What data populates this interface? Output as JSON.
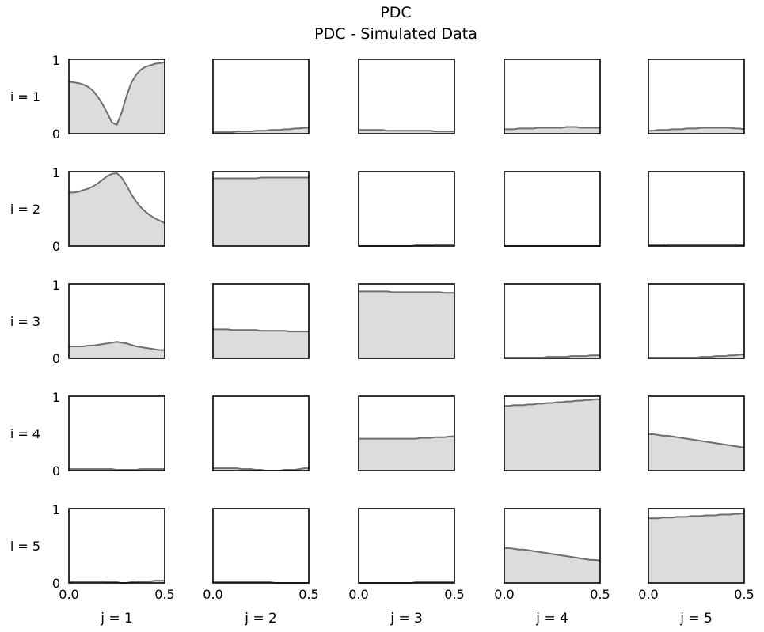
{
  "chart_data": {
    "type": "area",
    "title": "PDC",
    "subtitle": "PDC - Simulated Data",
    "row_labels": [
      "i =  1",
      "i =  2",
      "i =  3",
      "i =  4",
      "i =  5"
    ],
    "col_labels": [
      "j =  1",
      "j =  2",
      "j =  3",
      "j =  4",
      "j =  5"
    ],
    "xlim": [
      0.0,
      0.5
    ],
    "ylim": [
      0,
      1
    ],
    "x_tick_labels": [
      "0.0",
      "0.5"
    ],
    "y_tick_labels": [
      "0",
      "1"
    ],
    "x": [
      0.0,
      0.025,
      0.05,
      0.075,
      0.1,
      0.125,
      0.15,
      0.175,
      0.2,
      0.225,
      0.25,
      0.275,
      0.3,
      0.325,
      0.35,
      0.375,
      0.4,
      0.425,
      0.45,
      0.475,
      0.5
    ],
    "grid": false,
    "fill_color": "#dcdcdc",
    "line_color": "#6e6e6e",
    "panels": [
      [
        {
          "i": 1,
          "j": 1,
          "values": [
            0.7,
            0.69,
            0.68,
            0.66,
            0.63,
            0.58,
            0.5,
            0.4,
            0.28,
            0.15,
            0.12,
            0.28,
            0.5,
            0.68,
            0.79,
            0.86,
            0.9,
            0.92,
            0.94,
            0.95,
            0.96
          ]
        },
        {
          "i": 1,
          "j": 2,
          "values": [
            0.02,
            0.02,
            0.02,
            0.02,
            0.02,
            0.03,
            0.03,
            0.03,
            0.03,
            0.04,
            0.04,
            0.04,
            0.05,
            0.05,
            0.05,
            0.06,
            0.06,
            0.07,
            0.07,
            0.08,
            0.08
          ]
        },
        {
          "i": 1,
          "j": 3,
          "values": [
            0.05,
            0.05,
            0.05,
            0.05,
            0.05,
            0.05,
            0.04,
            0.04,
            0.04,
            0.04,
            0.04,
            0.04,
            0.04,
            0.04,
            0.04,
            0.04,
            0.03,
            0.03,
            0.03,
            0.03,
            0.03
          ]
        },
        {
          "i": 1,
          "j": 4,
          "values": [
            0.06,
            0.06,
            0.06,
            0.07,
            0.07,
            0.07,
            0.07,
            0.08,
            0.08,
            0.08,
            0.08,
            0.08,
            0.08,
            0.09,
            0.09,
            0.09,
            0.08,
            0.08,
            0.08,
            0.08,
            0.08
          ]
        },
        {
          "i": 1,
          "j": 5,
          "values": [
            0.04,
            0.04,
            0.05,
            0.05,
            0.05,
            0.06,
            0.06,
            0.06,
            0.07,
            0.07,
            0.07,
            0.08,
            0.08,
            0.08,
            0.08,
            0.08,
            0.08,
            0.08,
            0.07,
            0.07,
            0.06
          ]
        }
      ],
      [
        {
          "i": 2,
          "j": 1,
          "values": [
            0.72,
            0.72,
            0.73,
            0.75,
            0.77,
            0.8,
            0.84,
            0.89,
            0.94,
            0.97,
            0.98,
            0.92,
            0.82,
            0.7,
            0.6,
            0.52,
            0.46,
            0.41,
            0.37,
            0.34,
            0.31
          ]
        },
        {
          "i": 2,
          "j": 2,
          "values": [
            0.91,
            0.91,
            0.91,
            0.91,
            0.91,
            0.91,
            0.91,
            0.91,
            0.91,
            0.91,
            0.92,
            0.92,
            0.92,
            0.92,
            0.92,
            0.92,
            0.92,
            0.92,
            0.92,
            0.92,
            0.92
          ]
        },
        {
          "i": 2,
          "j": 3,
          "values": [
            0.0,
            0.0,
            0.0,
            0.0,
            0.0,
            0.0,
            0.0,
            0.0,
            0.0,
            0.0,
            0.0,
            0.0,
            0.01,
            0.01,
            0.01,
            0.01,
            0.02,
            0.02,
            0.02,
            0.02,
            0.02
          ]
        },
        {
          "i": 2,
          "j": 4,
          "values": [
            0.0,
            0.0,
            0.0,
            0.0,
            0.0,
            0.0,
            0.0,
            0.0,
            0.0,
            0.0,
            0.0,
            0.0,
            0.0,
            0.0,
            0.0,
            0.0,
            0.0,
            0.0,
            0.0,
            0.0,
            0.0
          ]
        },
        {
          "i": 2,
          "j": 5,
          "values": [
            0.01,
            0.01,
            0.01,
            0.01,
            0.02,
            0.02,
            0.02,
            0.02,
            0.02,
            0.02,
            0.02,
            0.02,
            0.02,
            0.02,
            0.02,
            0.02,
            0.02,
            0.02,
            0.02,
            0.01,
            0.01
          ]
        }
      ],
      [
        {
          "i": 3,
          "j": 1,
          "values": [
            0.16,
            0.16,
            0.16,
            0.16,
            0.17,
            0.17,
            0.18,
            0.19,
            0.2,
            0.21,
            0.22,
            0.21,
            0.2,
            0.18,
            0.16,
            0.15,
            0.14,
            0.13,
            0.12,
            0.11,
            0.11
          ]
        },
        {
          "i": 3,
          "j": 2,
          "values": [
            0.39,
            0.39,
            0.39,
            0.39,
            0.38,
            0.38,
            0.38,
            0.38,
            0.38,
            0.38,
            0.37,
            0.37,
            0.37,
            0.37,
            0.37,
            0.37,
            0.36,
            0.36,
            0.36,
            0.36,
            0.36
          ]
        },
        {
          "i": 3,
          "j": 3,
          "values": [
            0.9,
            0.9,
            0.9,
            0.9,
            0.9,
            0.9,
            0.9,
            0.89,
            0.89,
            0.89,
            0.89,
            0.89,
            0.89,
            0.89,
            0.89,
            0.89,
            0.89,
            0.89,
            0.88,
            0.88,
            0.88
          ]
        },
        {
          "i": 3,
          "j": 4,
          "values": [
            0.01,
            0.01,
            0.01,
            0.01,
            0.01,
            0.01,
            0.01,
            0.01,
            0.01,
            0.02,
            0.02,
            0.02,
            0.02,
            0.02,
            0.03,
            0.03,
            0.03,
            0.03,
            0.04,
            0.04,
            0.04
          ]
        },
        {
          "i": 3,
          "j": 5,
          "values": [
            0.01,
            0.01,
            0.01,
            0.01,
            0.01,
            0.01,
            0.01,
            0.01,
            0.01,
            0.01,
            0.01,
            0.02,
            0.02,
            0.02,
            0.03,
            0.03,
            0.03,
            0.04,
            0.04,
            0.05,
            0.05
          ]
        }
      ],
      [
        {
          "i": 4,
          "j": 1,
          "values": [
            0.02,
            0.02,
            0.02,
            0.02,
            0.02,
            0.02,
            0.02,
            0.02,
            0.02,
            0.02,
            0.01,
            0.01,
            0.01,
            0.01,
            0.01,
            0.02,
            0.02,
            0.02,
            0.02,
            0.02,
            0.02
          ]
        },
        {
          "i": 4,
          "j": 2,
          "values": [
            0.03,
            0.03,
            0.03,
            0.03,
            0.03,
            0.03,
            0.02,
            0.02,
            0.02,
            0.01,
            0.01,
            0.0,
            0.0,
            0.0,
            0.0,
            0.01,
            0.01,
            0.01,
            0.02,
            0.03,
            0.03
          ]
        },
        {
          "i": 4,
          "j": 3,
          "values": [
            0.43,
            0.43,
            0.43,
            0.43,
            0.43,
            0.43,
            0.43,
            0.43,
            0.43,
            0.43,
            0.43,
            0.43,
            0.43,
            0.44,
            0.44,
            0.44,
            0.45,
            0.45,
            0.45,
            0.46,
            0.46
          ]
        },
        {
          "i": 4,
          "j": 4,
          "values": [
            0.87,
            0.87,
            0.88,
            0.88,
            0.88,
            0.89,
            0.89,
            0.9,
            0.9,
            0.91,
            0.91,
            0.92,
            0.92,
            0.93,
            0.93,
            0.94,
            0.94,
            0.95,
            0.95,
            0.96,
            0.96
          ]
        },
        {
          "i": 4,
          "j": 5,
          "values": [
            0.49,
            0.49,
            0.48,
            0.47,
            0.47,
            0.46,
            0.45,
            0.44,
            0.43,
            0.42,
            0.41,
            0.4,
            0.39,
            0.38,
            0.37,
            0.36,
            0.35,
            0.34,
            0.33,
            0.32,
            0.31
          ]
        }
      ],
      [
        {
          "i": 5,
          "j": 1,
          "values": [
            0.01,
            0.02,
            0.02,
            0.02,
            0.02,
            0.02,
            0.02,
            0.02,
            0.01,
            0.01,
            0.01,
            0.0,
            0.0,
            0.01,
            0.01,
            0.02,
            0.02,
            0.02,
            0.03,
            0.03,
            0.03
          ]
        },
        {
          "i": 5,
          "j": 2,
          "values": [
            0.01,
            0.01,
            0.01,
            0.01,
            0.01,
            0.01,
            0.01,
            0.01,
            0.01,
            0.01,
            0.01,
            0.01,
            0.01,
            0.0,
            0.0,
            0.0,
            0.0,
            0.0,
            0.0,
            0.0,
            0.0
          ]
        },
        {
          "i": 5,
          "j": 3,
          "values": [
            0.0,
            0.0,
            0.0,
            0.0,
            0.0,
            0.0,
            0.0,
            0.0,
            0.0,
            0.0,
            0.0,
            0.0,
            0.01,
            0.01,
            0.01,
            0.01,
            0.01,
            0.01,
            0.01,
            0.01,
            0.01
          ]
        },
        {
          "i": 5,
          "j": 4,
          "values": [
            0.47,
            0.47,
            0.46,
            0.45,
            0.45,
            0.44,
            0.43,
            0.42,
            0.41,
            0.4,
            0.39,
            0.38,
            0.37,
            0.36,
            0.35,
            0.34,
            0.33,
            0.32,
            0.31,
            0.31,
            0.3
          ]
        },
        {
          "i": 5,
          "j": 5,
          "values": [
            0.87,
            0.87,
            0.87,
            0.88,
            0.88,
            0.88,
            0.89,
            0.89,
            0.89,
            0.9,
            0.9,
            0.9,
            0.91,
            0.91,
            0.91,
            0.92,
            0.92,
            0.92,
            0.93,
            0.93,
            0.94
          ]
        }
      ]
    ]
  }
}
